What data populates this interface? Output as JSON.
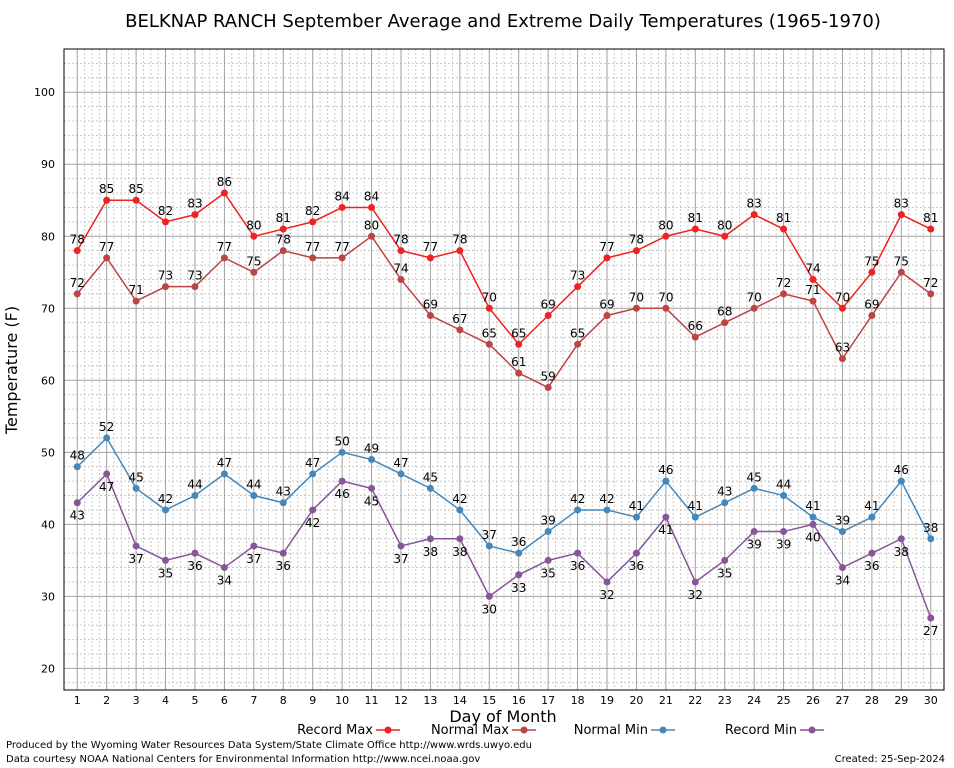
{
  "chart_data": {
    "type": "line",
    "title": "BELKNAP RANCH September Average and Extreme Daily Temperatures (1965-1970)",
    "xlabel": "Day of Month",
    "ylabel": "Temperature (F)",
    "x": [
      1,
      2,
      3,
      4,
      5,
      6,
      7,
      8,
      9,
      10,
      11,
      12,
      13,
      14,
      15,
      16,
      17,
      18,
      19,
      20,
      21,
      22,
      23,
      24,
      25,
      26,
      27,
      28,
      29,
      30
    ],
    "x_ticks": [
      "1",
      "2",
      "3",
      "4",
      "5",
      "6",
      "7",
      "8",
      "9",
      "10",
      "11",
      "12",
      "13",
      "14",
      "15",
      "16",
      "17",
      "18",
      "19",
      "20",
      "21",
      "22",
      "23",
      "24",
      "25",
      "26",
      "27",
      "28",
      "29",
      "30"
    ],
    "ylim": [
      17,
      106
    ],
    "y_ticks": [
      "20",
      "30",
      "40",
      "50",
      "60",
      "70",
      "80",
      "90",
      "100"
    ],
    "grid": true,
    "legend_position": "bottom",
    "series": [
      {
        "name": "Record Max",
        "color": "#ee2222",
        "values": [
          78,
          85,
          85,
          82,
          83,
          86,
          80,
          81,
          82,
          84,
          84,
          78,
          77,
          78,
          70,
          65,
          69,
          73,
          77,
          78,
          80,
          81,
          80,
          83,
          81,
          74,
          70,
          75,
          83,
          81
        ]
      },
      {
        "name": "Normal Max",
        "color": "#bb4444",
        "values": [
          72,
          77,
          71,
          73,
          73,
          77,
          75,
          78,
          77,
          77,
          80,
          74,
          69,
          67,
          65,
          61,
          59,
          65,
          69,
          70,
          70,
          66,
          68,
          70,
          72,
          71,
          63,
          69,
          75,
          72
        ]
      },
      {
        "name": "Normal Min",
        "color": "#4488bb",
        "values": [
          48,
          52,
          45,
          42,
          44,
          47,
          44,
          43,
          47,
          50,
          49,
          47,
          45,
          42,
          37,
          36,
          39,
          42,
          42,
          41,
          46,
          41,
          43,
          45,
          44,
          41,
          39,
          41,
          46,
          38
        ]
      },
      {
        "name": "Record Min",
        "color": "#885599",
        "values": [
          43,
          47,
          37,
          35,
          36,
          34,
          37,
          36,
          42,
          46,
          45,
          37,
          38,
          38,
          30,
          33,
          35,
          36,
          32,
          36,
          41,
          32,
          35,
          39,
          39,
          40,
          34,
          36,
          38,
          27
        ]
      }
    ]
  },
  "footer": {
    "line1": "Produced by the Wyoming Water Resources Data System/State Climate Office http://www.wrds.uwyo.edu",
    "line2": "Data courtesy NOAA National Centers for Environmental Information http://www.ncei.noaa.gov",
    "created": "Created:  25-Sep-2024"
  }
}
